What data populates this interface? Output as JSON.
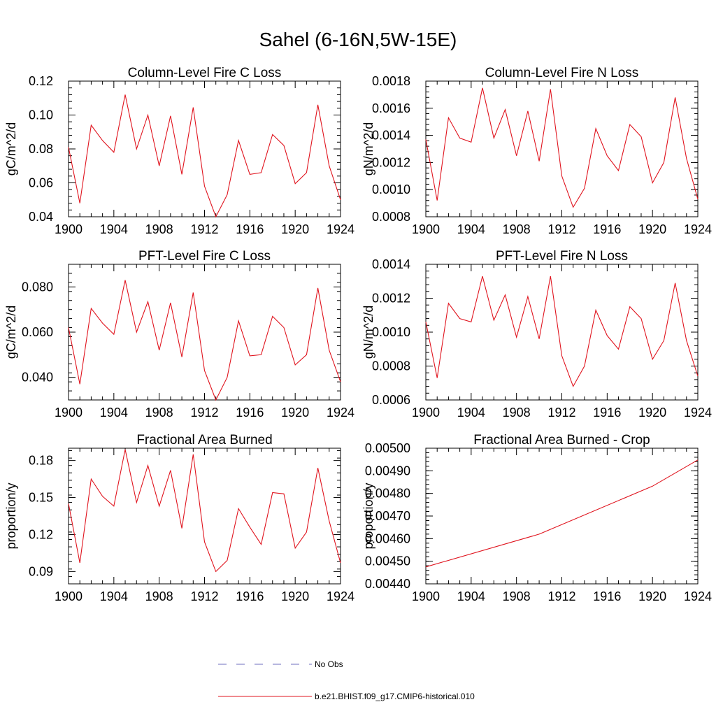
{
  "title": "Sahel (6-16N,5W-15E)",
  "legend": [
    {
      "label": "No Obs",
      "color": "#6f6fbf",
      "dash": true
    },
    {
      "label": "b.e21.BHIST.f09_g17.CMIP6-historical.010",
      "color": "#e0141e",
      "dash": false
    }
  ],
  "chart_data": [
    {
      "type": "line",
      "title": "Column-Level Fire C Loss",
      "ylabel": "gC/m^2/d",
      "xlim": [
        1900,
        1924
      ],
      "ylim": [
        0.04,
        0.12
      ],
      "xticks": [
        "1900",
        "1904",
        "1908",
        "1912",
        "1916",
        "1920",
        "1924"
      ],
      "yticks": [
        "0.04",
        "0.06",
        "0.08",
        "0.10",
        "0.12"
      ],
      "series": [
        {
          "color": "#e0141e",
          "x": [
            1900,
            1901,
            1902,
            1903,
            1904,
            1905,
            1906,
            1907,
            1908,
            1909,
            1910,
            1911,
            1912,
            1913,
            1914,
            1915,
            1916,
            1917,
            1918,
            1919,
            1920,
            1921,
            1922,
            1923,
            1924
          ],
          "y": [
            0.081,
            0.048,
            0.094,
            0.085,
            0.078,
            0.112,
            0.08,
            0.1,
            0.07,
            0.0995,
            0.065,
            0.1045,
            0.058,
            0.04,
            0.053,
            0.085,
            0.065,
            0.066,
            0.0885,
            0.082,
            0.0595,
            0.066,
            0.106,
            0.07,
            0.05
          ]
        }
      ]
    },
    {
      "type": "line",
      "title": "Column-Level Fire N Loss",
      "ylabel": "gN/m^2/d",
      "xlim": [
        1900,
        1924
      ],
      "ylim": [
        0.0008,
        0.0018
      ],
      "xticks": [
        "1900",
        "1904",
        "1908",
        "1912",
        "1916",
        "1920",
        "1924"
      ],
      "yticks": [
        "0.0008",
        "0.0010",
        "0.0012",
        "0.0014",
        "0.0016",
        "0.0018"
      ],
      "series": [
        {
          "color": "#e0141e",
          "x": [
            1900,
            1901,
            1902,
            1903,
            1904,
            1905,
            1906,
            1907,
            1908,
            1909,
            1910,
            1911,
            1912,
            1913,
            1914,
            1915,
            1916,
            1917,
            1918,
            1919,
            1920,
            1921,
            1922,
            1923,
            1924
          ],
          "y": [
            0.00137,
            0.00092,
            0.00153,
            0.00138,
            0.00135,
            0.00175,
            0.00138,
            0.00159,
            0.00125,
            0.00158,
            0.00121,
            0.00174,
            0.0011,
            0.00087,
            0.00101,
            0.00145,
            0.00125,
            0.00114,
            0.00148,
            0.00139,
            0.00105,
            0.0012,
            0.00168,
            0.00123,
            0.00093
          ]
        }
      ]
    },
    {
      "type": "line",
      "title": "PFT-Level Fire C Loss",
      "ylabel": "gC/m^2/d",
      "xlim": [
        1900,
        1924
      ],
      "ylim": [
        0.03,
        0.09
      ],
      "xticks": [
        "1900",
        "1904",
        "1908",
        "1912",
        "1916",
        "1920",
        "1924"
      ],
      "yticks": [
        "0.040",
        "0.060",
        "0.080"
      ],
      "ytick_values": [
        0.04,
        0.06,
        0.08
      ],
      "series": [
        {
          "color": "#e0141e",
          "x": [
            1900,
            1901,
            1902,
            1903,
            1904,
            1905,
            1906,
            1907,
            1908,
            1909,
            1910,
            1911,
            1912,
            1913,
            1914,
            1915,
            1916,
            1917,
            1918,
            1919,
            1920,
            1921,
            1922,
            1923,
            1924
          ],
          "y": [
            0.062,
            0.037,
            0.0705,
            0.064,
            0.059,
            0.083,
            0.06,
            0.0735,
            0.052,
            0.073,
            0.049,
            0.0775,
            0.043,
            0.03,
            0.04,
            0.065,
            0.0495,
            0.05,
            0.067,
            0.062,
            0.0455,
            0.05,
            0.0795,
            0.052,
            0.038
          ]
        }
      ]
    },
    {
      "type": "line",
      "title": "PFT-Level Fire N Loss",
      "ylabel": "gN/m^2/d",
      "xlim": [
        1900,
        1924
      ],
      "ylim": [
        0.0006,
        0.0014
      ],
      "xticks": [
        "1900",
        "1904",
        "1908",
        "1912",
        "1916",
        "1920",
        "1924"
      ],
      "yticks": [
        "0.0006",
        "0.0008",
        "0.0010",
        "0.0012",
        "0.0014"
      ],
      "series": [
        {
          "color": "#e0141e",
          "x": [
            1900,
            1901,
            1902,
            1903,
            1904,
            1905,
            1906,
            1907,
            1908,
            1909,
            1910,
            1911,
            1912,
            1913,
            1914,
            1915,
            1916,
            1917,
            1918,
            1919,
            1920,
            1921,
            1922,
            1923,
            1924
          ],
          "y": [
            0.00106,
            0.00073,
            0.00117,
            0.00108,
            0.00106,
            0.00133,
            0.00107,
            0.00122,
            0.00097,
            0.00121,
            0.00096,
            0.00133,
            0.00086,
            0.00068,
            0.0008,
            0.00113,
            0.00098,
            0.0009,
            0.00115,
            0.00108,
            0.00084,
            0.00095,
            0.00129,
            0.00095,
            0.00074
          ]
        }
      ]
    },
    {
      "type": "line",
      "title": "Fractional Area Burned",
      "ylabel": "proportion/y",
      "xlim": [
        1900,
        1924
      ],
      "ylim": [
        0.08,
        0.19
      ],
      "xticks": [
        "1900",
        "1904",
        "1908",
        "1912",
        "1916",
        "1920",
        "1924"
      ],
      "yticks": [
        "0.09",
        "0.12",
        "0.15",
        "0.18"
      ],
      "series": [
        {
          "color": "#e0141e",
          "x": [
            1900,
            1901,
            1902,
            1903,
            1904,
            1905,
            1906,
            1907,
            1908,
            1909,
            1910,
            1911,
            1912,
            1913,
            1914,
            1915,
            1916,
            1917,
            1918,
            1919,
            1920,
            1921,
            1922,
            1923,
            1924
          ],
          "y": [
            0.145,
            0.097,
            0.165,
            0.151,
            0.143,
            0.189,
            0.146,
            0.176,
            0.143,
            0.172,
            0.125,
            0.185,
            0.114,
            0.09,
            0.099,
            0.141,
            0.126,
            0.112,
            0.154,
            0.153,
            0.109,
            0.122,
            0.174,
            0.131,
            0.097
          ]
        }
      ]
    },
    {
      "type": "line",
      "title": "Fractional Area Burned - Crop",
      "ylabel": "proportion/y",
      "xlim": [
        1900,
        1924
      ],
      "ylim": [
        0.0044,
        0.005
      ],
      "xticks": [
        "1900",
        "1904",
        "1908",
        "1912",
        "1916",
        "1920",
        "1924"
      ],
      "yticks": [
        "0.00440",
        "0.00450",
        "0.00460",
        "0.00470",
        "0.00480",
        "0.00490",
        "0.00500"
      ],
      "series": [
        {
          "color": "#e0141e",
          "x": [
            1900,
            1910,
            1920,
            1924
          ],
          "y": [
            0.004475,
            0.00462,
            0.004832,
            0.004948
          ]
        }
      ]
    }
  ]
}
